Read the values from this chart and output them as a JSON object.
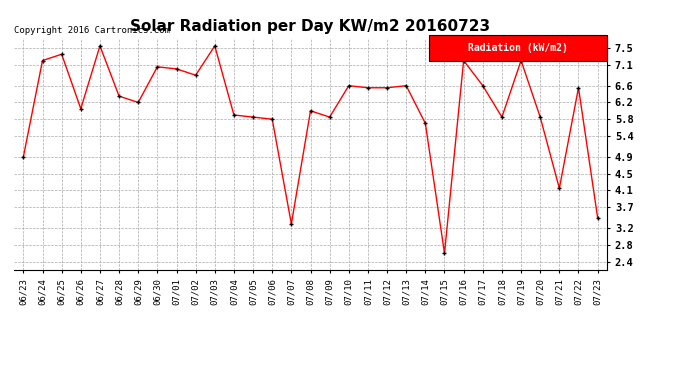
{
  "title": "Solar Radiation per Day KW/m2 20160723",
  "copyright_text": "Copyright 2016 Cartronics.com",
  "legend_label": "Radiation (kW/m2)",
  "dates": [
    "06/23",
    "06/24",
    "06/25",
    "06/26",
    "06/27",
    "06/28",
    "06/29",
    "06/30",
    "07/01",
    "07/02",
    "07/03",
    "07/04",
    "07/05",
    "07/06",
    "07/07",
    "07/08",
    "07/09",
    "07/10",
    "07/11",
    "07/12",
    "07/13",
    "07/14",
    "07/15",
    "07/16",
    "07/17",
    "07/18",
    "07/19",
    "07/20",
    "07/21",
    "07/22",
    "07/23"
  ],
  "values": [
    4.9,
    7.2,
    7.35,
    6.05,
    7.55,
    6.35,
    6.2,
    7.05,
    7.0,
    6.85,
    7.55,
    5.9,
    5.85,
    5.8,
    3.3,
    6.0,
    5.85,
    6.6,
    6.55,
    6.55,
    6.6,
    5.7,
    2.6,
    7.2,
    6.6,
    5.85,
    7.2,
    5.85,
    4.15,
    6.55,
    3.45
  ],
  "yticks": [
    2.4,
    2.8,
    3.2,
    3.7,
    4.1,
    4.5,
    4.9,
    5.4,
    5.8,
    6.2,
    6.6,
    7.1,
    7.5
  ],
  "ylim": [
    2.2,
    7.75
  ],
  "line_color": "red",
  "marker_color": "black",
  "background_color": "#ffffff",
  "grid_color": "#aaaaaa",
  "title_fontsize": 11,
  "legend_bg": "red",
  "legend_text_color": "white"
}
